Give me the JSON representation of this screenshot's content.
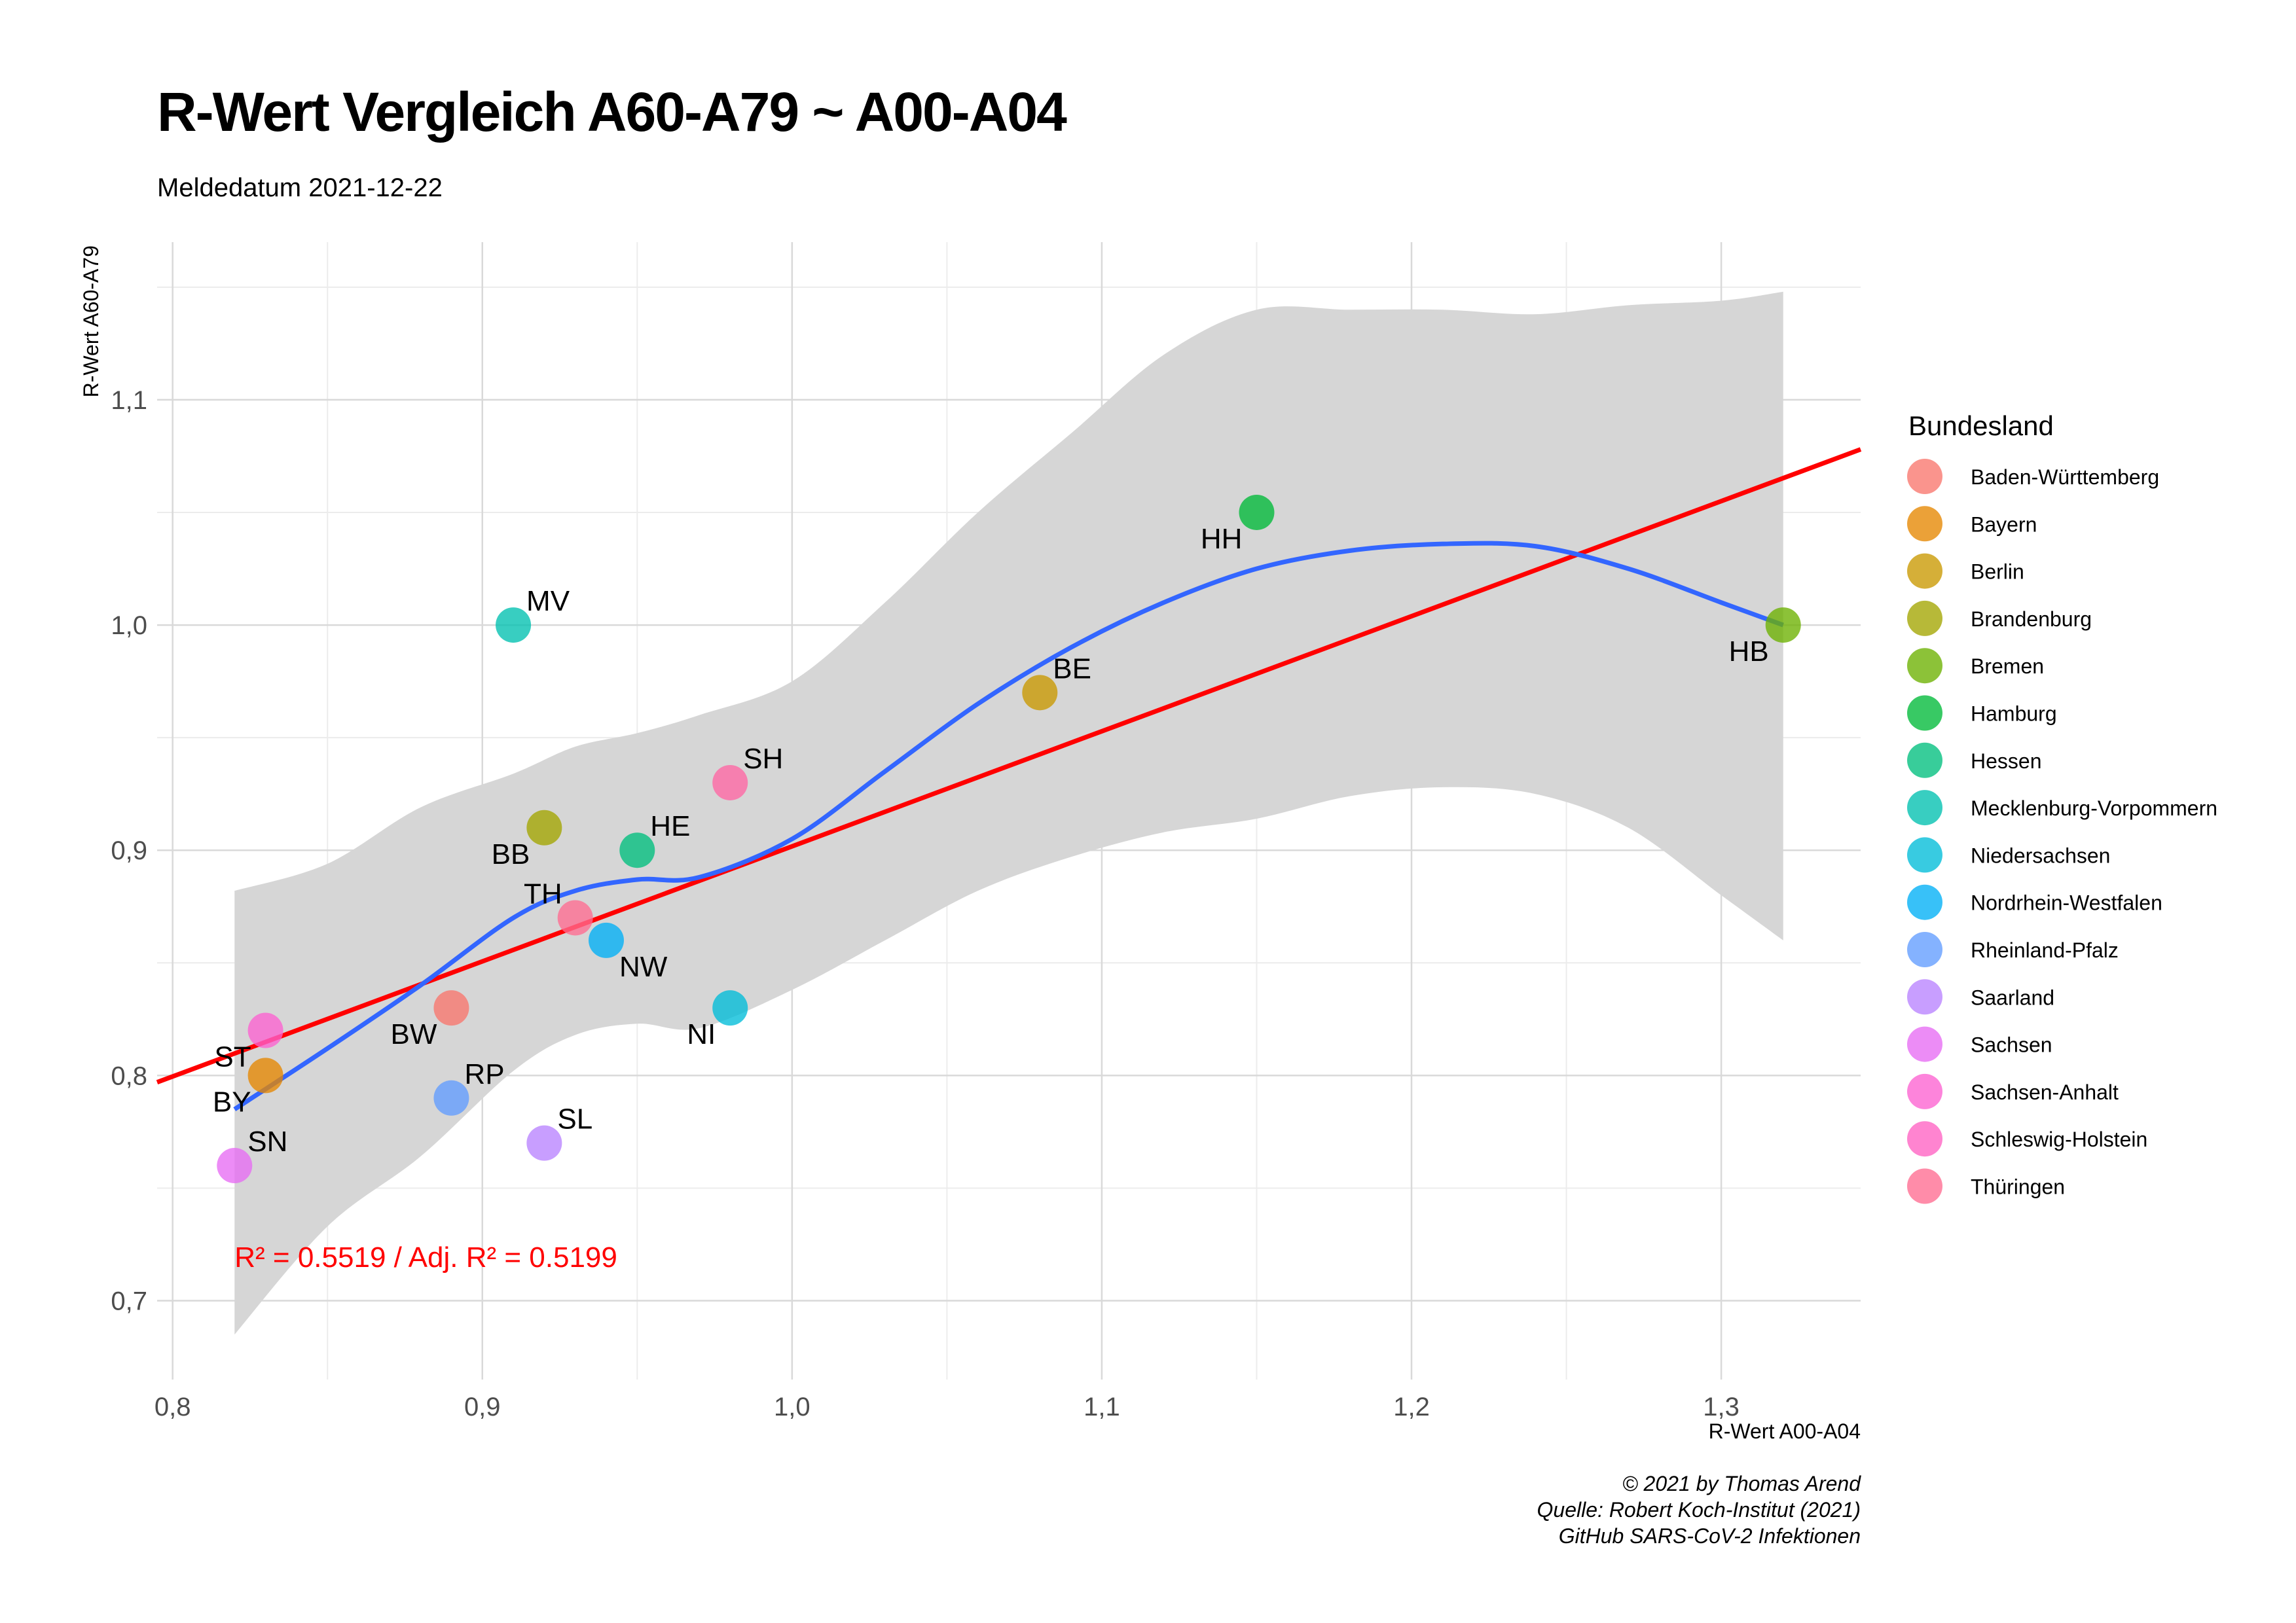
{
  "chart_data": {
    "type": "scatter",
    "title": "R-Wert Vergleich A60-A79 ~ A00-A04",
    "subtitle": "Meldedatum 2021-12-22",
    "xlabel": "R-Wert A00-A04",
    "ylabel": "R-Wert A60-A79",
    "xlim": [
      0.795,
      1.345
    ],
    "ylim": [
      0.665,
      1.17
    ],
    "x_ticks": [
      0.8,
      0.9,
      1.0,
      1.1,
      1.2,
      1.3
    ],
    "x_tick_labels": [
      "0,8",
      "0,9",
      "1,0",
      "1,1",
      "1,2",
      "1,3"
    ],
    "y_ticks": [
      0.7,
      0.8,
      0.9,
      1.0,
      1.1
    ],
    "y_tick_labels": [
      "0,7",
      "0,8",
      "0,9",
      "1,0",
      "1,1"
    ],
    "grid": true,
    "legend_title": "Bundesland",
    "legend_position": "right",
    "points": [
      {
        "label": "BW",
        "state": "Baden-Württemberg",
        "x": 0.89,
        "y": 0.83,
        "color": "#f8766d",
        "label_pos": "bottom-left"
      },
      {
        "label": "BY",
        "state": "Bayern",
        "x": 0.83,
        "y": 0.8,
        "color": "#e58700",
        "label_pos": "bottom-left"
      },
      {
        "label": "BE",
        "state": "Berlin",
        "x": 1.08,
        "y": 0.97,
        "color": "#c99800",
        "label_pos": "top-right"
      },
      {
        "label": "BB",
        "state": "Brandenburg",
        "x": 0.92,
        "y": 0.91,
        "color": "#a3a500",
        "label_pos": "bottom-left"
      },
      {
        "label": "HB",
        "state": "Bremen",
        "x": 1.32,
        "y": 1.0,
        "color": "#6bb100",
        "label_pos": "bottom-left"
      },
      {
        "label": "HH",
        "state": "Hamburg",
        "x": 1.15,
        "y": 1.05,
        "color": "#00ba38",
        "label_pos": "bottom-left"
      },
      {
        "label": "HE",
        "state": "Hessen",
        "x": 0.95,
        "y": 0.9,
        "color": "#00bf7d",
        "label_pos": "top-right"
      },
      {
        "label": "MV",
        "state": "Mecklenburg-Vorpommern",
        "x": 0.91,
        "y": 1.0,
        "color": "#00c0af",
        "label_pos": "top-right"
      },
      {
        "label": "NI",
        "state": "Niedersachsen",
        "x": 0.98,
        "y": 0.83,
        "color": "#00bcd8",
        "label_pos": "bottom-left"
      },
      {
        "label": "NW",
        "state": "Nordrhein-Westfalen",
        "x": 0.94,
        "y": 0.86,
        "color": "#00b0f6",
        "label_pos": "bottom-right"
      },
      {
        "label": "RP",
        "state": "Rheinland-Pfalz",
        "x": 0.89,
        "y": 0.79,
        "color": "#619cff",
        "label_pos": "top-right"
      },
      {
        "label": "SL",
        "state": "Saarland",
        "x": 0.92,
        "y": 0.77,
        "color": "#b983ff",
        "label_pos": "top-right"
      },
      {
        "label": "SN",
        "state": "Sachsen",
        "x": 0.82,
        "y": 0.76,
        "color": "#e76bf3",
        "label_pos": "top-right"
      },
      {
        "label": "ST",
        "state": "Sachsen-Anhalt",
        "x": 0.83,
        "y": 0.82,
        "color": "#fd61d1",
        "label_pos": "bottom-left"
      },
      {
        "label": "SH",
        "state": "Schleswig-Holstein",
        "x": 0.98,
        "y": 0.93,
        "color": "#ff67a4",
        "label_pos": "top-right"
      },
      {
        "label": "TH",
        "state": "Thüringen",
        "x": 0.93,
        "y": 0.87,
        "color": "#ff6c91",
        "label_pos": "top-left"
      }
    ],
    "legend": [
      {
        "name": "Baden-Württemberg",
        "color": "#f8766d"
      },
      {
        "name": "Bayern",
        "color": "#e58700"
      },
      {
        "name": "Berlin",
        "color": "#c99800"
      },
      {
        "name": "Brandenburg",
        "color": "#a3a500"
      },
      {
        "name": "Bremen",
        "color": "#6bb100"
      },
      {
        "name": "Hamburg",
        "color": "#00ba38"
      },
      {
        "name": "Hessen",
        "color": "#00bf7d"
      },
      {
        "name": "Mecklenburg-Vorpommern",
        "color": "#00c0af"
      },
      {
        "name": "Niedersachsen",
        "color": "#00bcd8"
      },
      {
        "name": "Nordrhein-Westfalen",
        "color": "#00b0f6"
      },
      {
        "name": "Rheinland-Pfalz",
        "color": "#619cff"
      },
      {
        "name": "Saarland",
        "color": "#b983ff"
      },
      {
        "name": "Sachsen",
        "color": "#e76bf3"
      },
      {
        "name": "Sachsen-Anhalt",
        "color": "#fd61d1"
      },
      {
        "name": "Schleswig-Holstein",
        "color": "#ff61c3"
      },
      {
        "name": "Thüringen",
        "color": "#ff6c91"
      }
    ],
    "regression_line": {
      "color": "#ff0000",
      "x": [
        0.795,
        1.345
      ],
      "y": [
        0.797,
        1.078
      ]
    },
    "smooth_curve": {
      "color": "#3366ff",
      "band_color": "#d6d6d6",
      "x": [
        0.82,
        0.85,
        0.88,
        0.91,
        0.93,
        0.95,
        0.97,
        1.0,
        1.03,
        1.06,
        1.09,
        1.12,
        1.15,
        1.18,
        1.21,
        1.24,
        1.27,
        1.3,
        1.32
      ],
      "y": [
        0.785,
        0.812,
        0.84,
        0.87,
        0.882,
        0.887,
        0.888,
        0.905,
        0.935,
        0.965,
        0.99,
        1.01,
        1.025,
        1.033,
        1.036,
        1.035,
        1.025,
        1.01,
        1.0
      ],
      "ymin": [
        0.685,
        0.733,
        0.764,
        0.802,
        0.818,
        0.823,
        0.821,
        0.838,
        0.86,
        0.882,
        0.897,
        0.908,
        0.914,
        0.924,
        0.928,
        0.925,
        0.91,
        0.88,
        0.86
      ],
      "ymax": [
        0.882,
        0.894,
        0.919,
        0.934,
        0.946,
        0.952,
        0.96,
        0.975,
        1.01,
        1.05,
        1.085,
        1.12,
        1.14,
        1.14,
        1.14,
        1.138,
        1.142,
        1.144,
        1.148
      ]
    },
    "annotation": {
      "text": "R² = 0.5519 / Adj. R² =  0.5199",
      "color": "#ff0000",
      "x": 0.82,
      "y": 0.715
    }
  },
  "caption": {
    "line1": "© 2021 by Thomas Arend",
    "line2": "Quelle: Robert Koch-Institut (2021)",
    "line3": "GitHub SARS-CoV-2 Infektionen"
  }
}
